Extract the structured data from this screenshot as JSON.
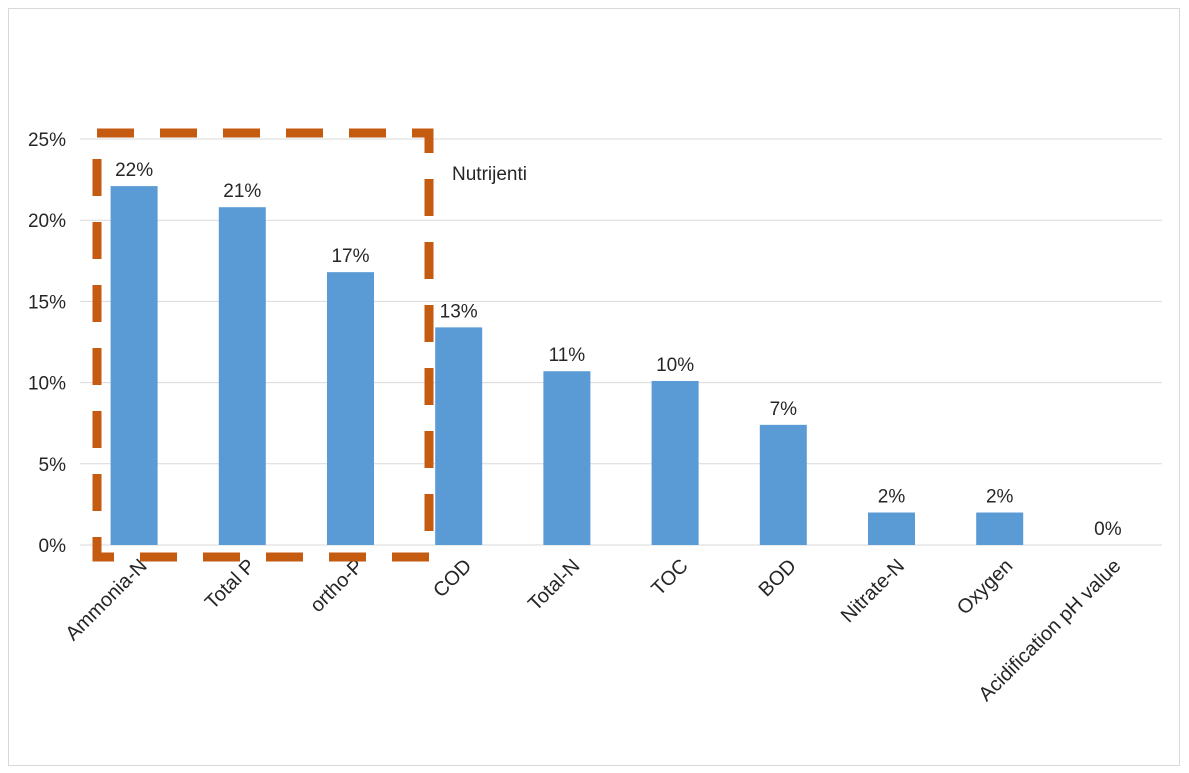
{
  "chart_data": {
    "type": "bar",
    "title": "",
    "xlabel": "",
    "ylabel": "",
    "ylim": [
      0,
      25
    ],
    "yticks": [
      "0%",
      "5%",
      "10%",
      "15%",
      "20%",
      "25%"
    ],
    "ytick_values": [
      0,
      5,
      10,
      15,
      20,
      25
    ],
    "grid": true,
    "legend": "none",
    "categories": [
      "Ammonia-N",
      "Total P",
      "ortho-P",
      "COD",
      "Total-N",
      "TOC",
      "BOD",
      "Nitrate-N",
      "Oxygen",
      "Acidification pH value"
    ],
    "values": [
      22.1,
      20.8,
      16.8,
      13.4,
      10.7,
      10.1,
      7.4,
      2.0,
      2.0,
      0
    ],
    "data_labels": [
      "22%",
      "21%",
      "17%",
      "13%",
      "11%",
      "10%",
      "7%",
      "2%",
      "2%",
      "0%"
    ],
    "bar_color": "#5b9bd5",
    "annotation": {
      "text": "Nutrijenti",
      "box_color": "#c55a11",
      "groups_categories": [
        "Ammonia-N",
        "Total P",
        "ortho-P"
      ]
    }
  }
}
